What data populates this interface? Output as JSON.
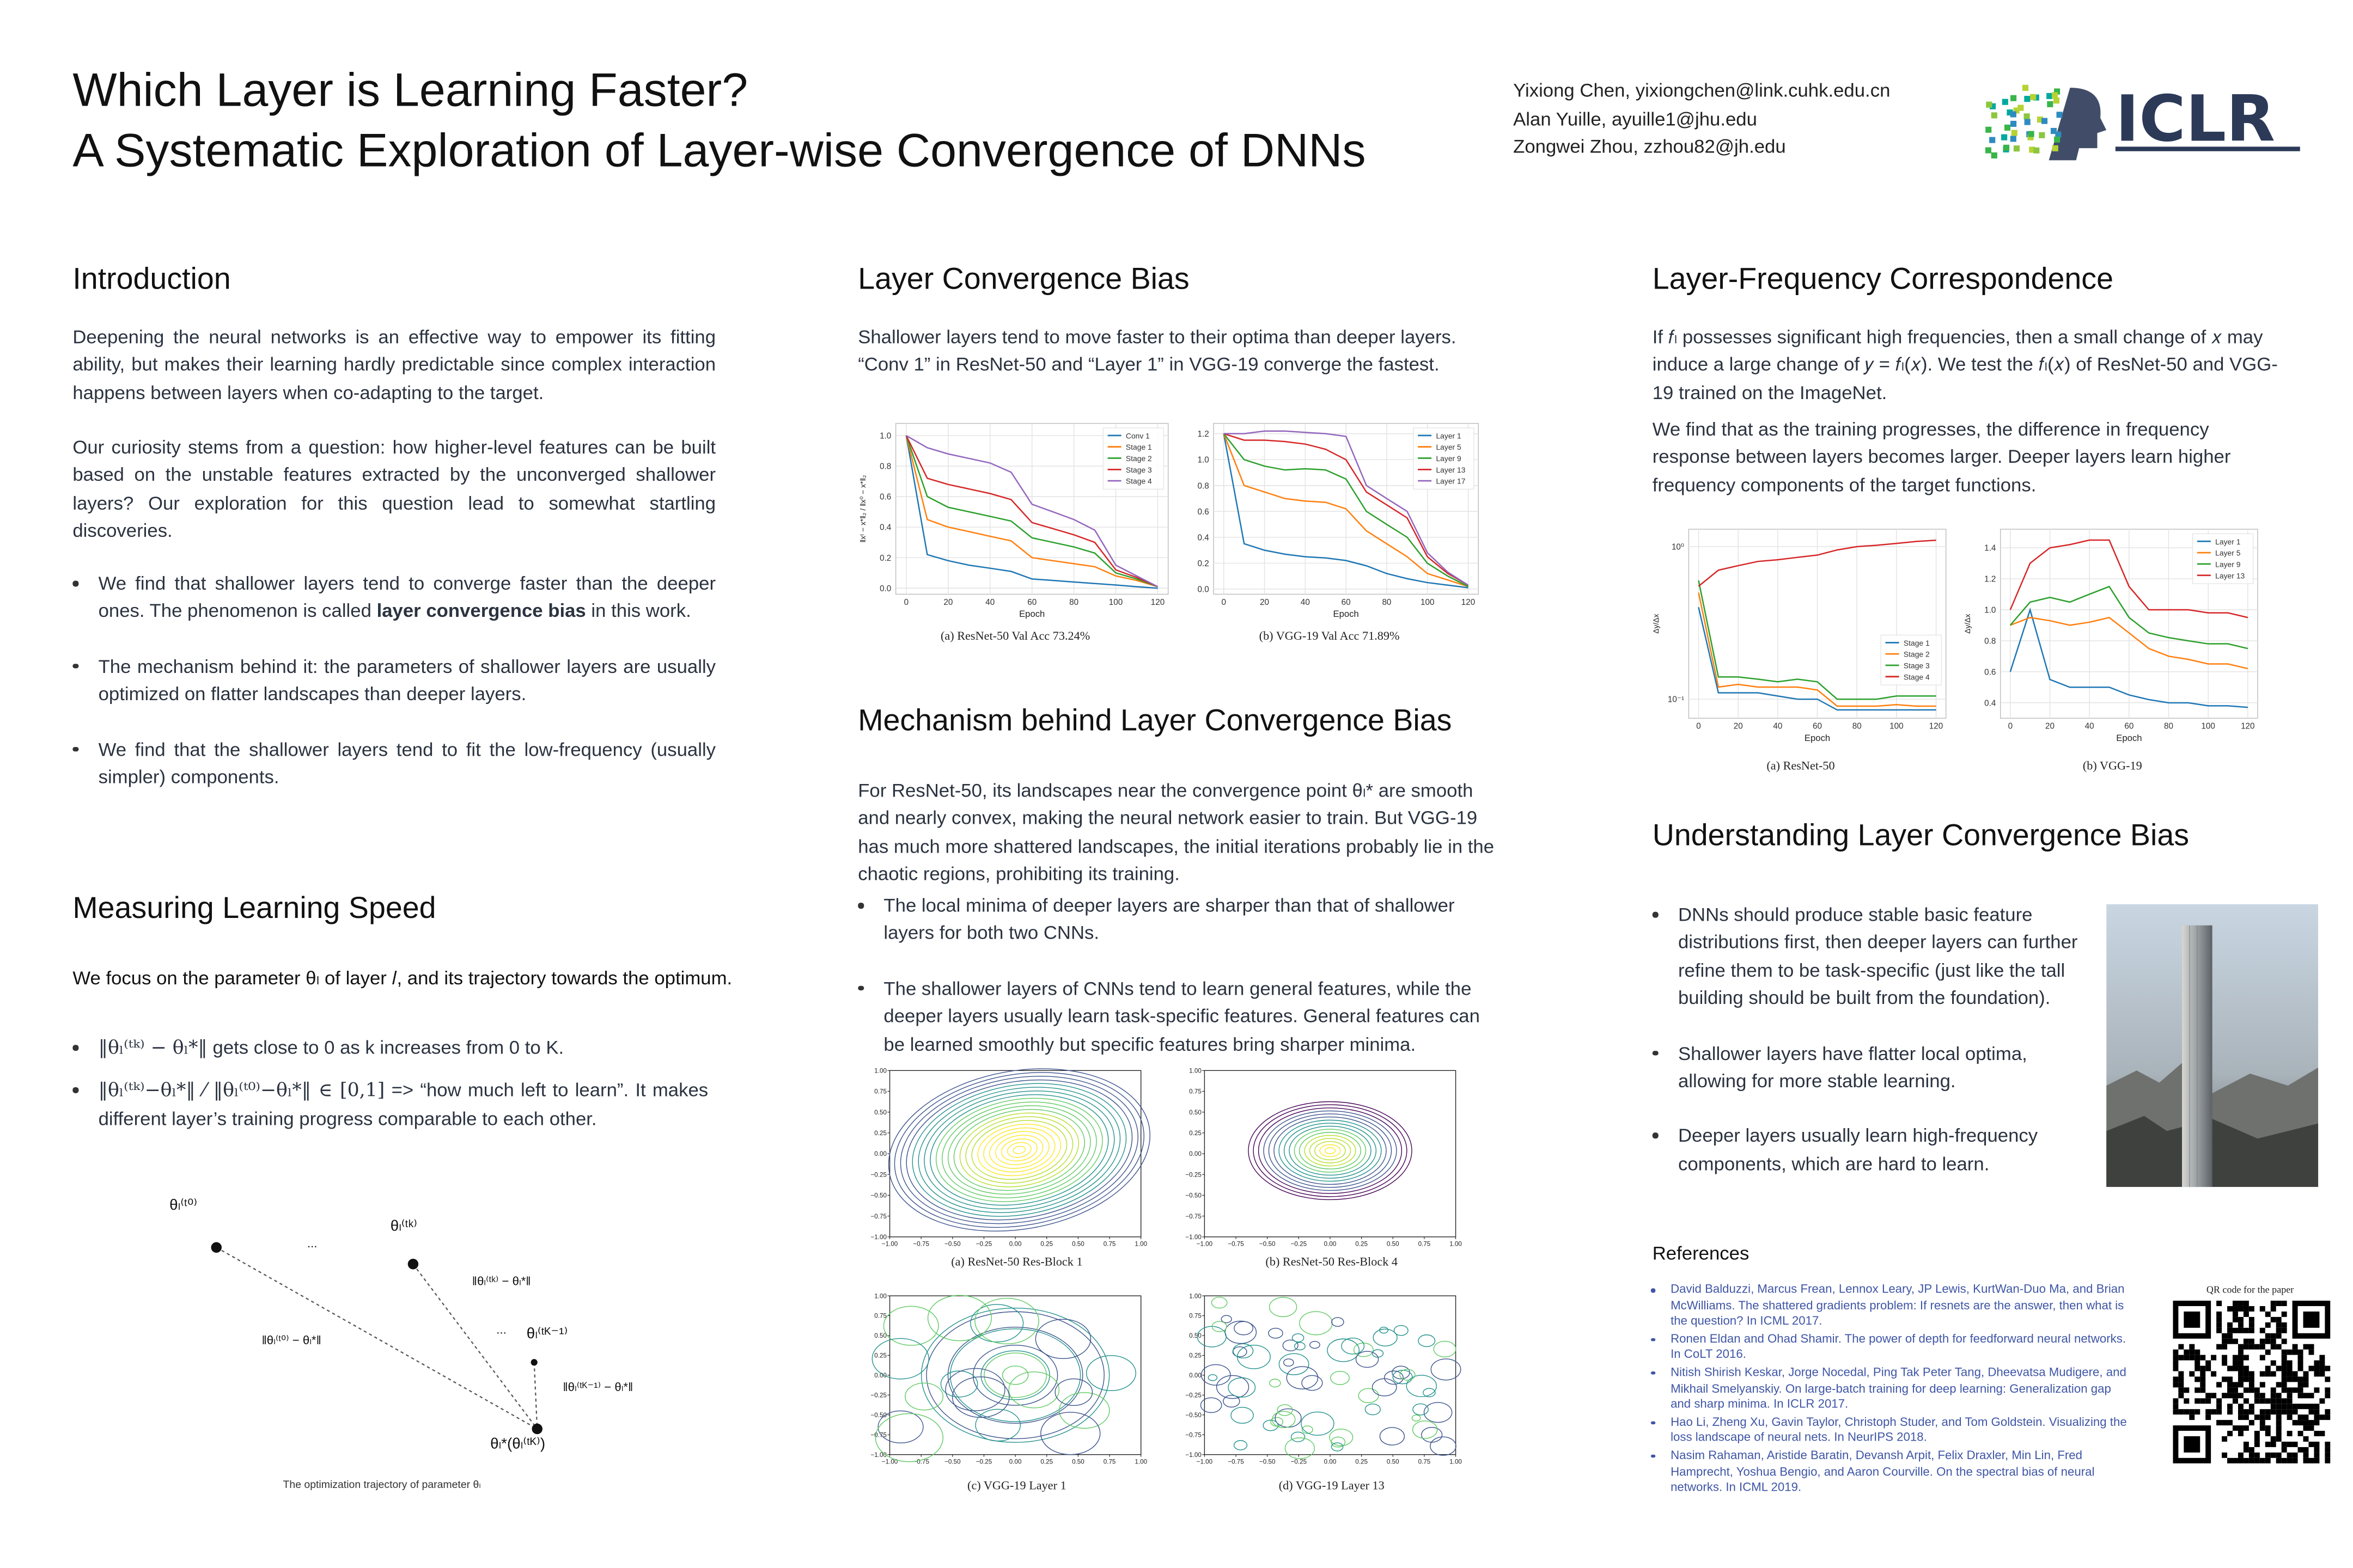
{
  "header": {
    "title_line1": "Which Layer is Learning Faster?",
    "title_line2": "A Systematic Exploration of Layer-wise Convergence of DNNs",
    "authors": [
      "Yixiong Chen, yixiongchen@link.cuhk.edu.cn",
      "Alan Yuille, ayuille1@jhu.edu",
      "Zongwei Zhou, zzhou82@jh.edu"
    ],
    "logo_text": "ICLR"
  },
  "introduction": {
    "heading": "Introduction",
    "paragraphs": [
      "Deepening the neural networks is an effective way to empower its fitting ability, but makes their learning hardly predictable since complex interaction happens between layers when co-adapting to the target.",
      "Our curiosity stems from a question: how higher-level features can be built based on the unstable features extracted by the unconverged shallower layers? Our exploration for this question lead to somewhat startling discoveries."
    ],
    "bullets": [
      {
        "before": "We find that shallower layers tend to converge faster than the deeper ones. The phenomenon is called",
        "bold": "layer convergence bias",
        "after": "in this work."
      },
      "The mechanism behind it: the parameters of shallower layers are usually optimized on flatter landscapes than deeper layers.",
      "We find that the shallower layers tend to fit the low-frequency (usually simpler) components."
    ]
  },
  "measuring": {
    "heading": "Measuring Learning Speed",
    "intro": "We focus on the parameter θₗ of layer 𝑙, and its trajectory towards the optimum.",
    "bullets": [
      {
        "formula": "‖θₗ⁽ᵗᵏ⁾ − θₗ*‖",
        "text": "gets close to 0 as k increases from 0 to K."
      },
      {
        "formula": "‖θₗ⁽ᵗᵏ⁾−θₗ*‖ ⁄ ‖θₗ⁽ᵗ⁰⁾−θₗ*‖ ∈ [0,1]",
        "text": "=>  “how much left to learn”. It makes different layer’s training progress comparable to each other."
      }
    ],
    "diagram": {
      "theta_t0": "θₗ⁽ᵗ⁰⁾",
      "theta_tk": "θₗ⁽ᵗᵏ⁾",
      "theta_tK1": "θₗ⁽ᵗᴷ⁻¹⁾",
      "theta_star": "θₗ*(θₗ⁽ᵗᴷ⁾)",
      "dist_t0": "‖θₗ⁽ᵗ⁰⁾ − θₗ*‖",
      "dist_tk": "‖θₗ⁽ᵗᵏ⁾ − θₗ*‖",
      "dist_tK1": "‖θₗ⁽ᵗᴷ⁻¹⁾ − θₗ*‖",
      "ellipsis": "...",
      "caption": "The optimization trajectory of parameter θₗ"
    }
  },
  "convergence": {
    "heading": "Layer Convergence Bias",
    "text": "Shallower layers tend to move faster to their optima than deeper layers. “Conv 1” in ResNet-50 and “Layer 1” in VGG-19 converge the fastest.",
    "figures": [
      {
        "type": "line",
        "caption": "(a) ResNet-50    Val Acc 73.24%",
        "xlabel": "Epoch",
        "ylabel": "‖xᵗ − x*‖₂ / ‖x⁰ − x*‖₂",
        "x": [
          0,
          10,
          20,
          30,
          40,
          50,
          60,
          70,
          80,
          90,
          100,
          110,
          120
        ],
        "xlim": [
          -5,
          125
        ],
        "xticks": [
          0,
          20,
          40,
          60,
          80,
          100,
          120
        ],
        "ylim": [
          -0.04,
          1.08
        ],
        "yticks": [
          {
            "value": 0,
            "label": "0.0"
          },
          0.2,
          0.4,
          0.6,
          0.8,
          {
            "value": 1,
            "label": "1.0"
          }
        ],
        "legend": "upper right",
        "grid": true,
        "series": [
          {
            "name": "Conv 1",
            "color": "#1f77b4",
            "values": [
              1.0,
              0.22,
              0.18,
              0.15,
              0.13,
              0.11,
              0.06,
              0.05,
              0.04,
              0.03,
              0.02,
              0.01,
              0.0
            ]
          },
          {
            "name": "Stage 1",
            "color": "#ff7f0e",
            "values": [
              1.0,
              0.45,
              0.4,
              0.37,
              0.34,
              0.31,
              0.2,
              0.18,
              0.16,
              0.14,
              0.08,
              0.05,
              0.01
            ]
          },
          {
            "name": "Stage 2",
            "color": "#2ca02c",
            "values": [
              1.0,
              0.6,
              0.53,
              0.5,
              0.47,
              0.44,
              0.33,
              0.3,
              0.27,
              0.23,
              0.1,
              0.06,
              0.01
            ]
          },
          {
            "name": "Stage 3",
            "color": "#d62728",
            "values": [
              1.0,
              0.72,
              0.68,
              0.65,
              0.62,
              0.58,
              0.43,
              0.39,
              0.35,
              0.3,
              0.12,
              0.07,
              0.01
            ]
          },
          {
            "name": "Stage 4",
            "color": "#9467bd",
            "values": [
              1.0,
              0.92,
              0.88,
              0.85,
              0.82,
              0.76,
              0.55,
              0.5,
              0.45,
              0.38,
              0.15,
              0.08,
              0.01
            ]
          }
        ]
      },
      {
        "type": "line",
        "caption": "(b) VGG-19    Val Acc 71.89%",
        "xlabel": "Epoch",
        "x": [
          0,
          10,
          20,
          30,
          40,
          50,
          60,
          70,
          80,
          90,
          100,
          110,
          120
        ],
        "xlim": [
          -5,
          125
        ],
        "xticks": [
          0,
          20,
          40,
          60,
          80,
          100,
          120
        ],
        "ylim": [
          -0.04,
          1.28
        ],
        "yticks": [
          {
            "value": 0,
            "label": "0.0"
          },
          0.2,
          0.4,
          0.6,
          0.8,
          {
            "value": 1,
            "label": "1.0"
          },
          1.2
        ],
        "legend": "upper right",
        "grid": true,
        "series": [
          {
            "name": "Layer 1",
            "color": "#1f77b4",
            "values": [
              1.2,
              0.35,
              0.3,
              0.27,
              0.25,
              0.24,
              0.22,
              0.18,
              0.12,
              0.08,
              0.05,
              0.03,
              0.01
            ]
          },
          {
            "name": "Layer 5",
            "color": "#ff7f0e",
            "values": [
              1.2,
              0.8,
              0.75,
              0.7,
              0.68,
              0.67,
              0.62,
              0.45,
              0.35,
              0.25,
              0.12,
              0.07,
              0.02
            ]
          },
          {
            "name": "Layer 9",
            "color": "#2ca02c",
            "values": [
              1.2,
              1.0,
              0.95,
              0.92,
              0.93,
              0.92,
              0.85,
              0.6,
              0.5,
              0.4,
              0.2,
              0.1,
              0.02
            ]
          },
          {
            "name": "Layer 13",
            "color": "#d62728",
            "values": [
              1.2,
              1.15,
              1.15,
              1.14,
              1.12,
              1.08,
              1.0,
              0.75,
              0.65,
              0.55,
              0.25,
              0.12,
              0.03
            ]
          },
          {
            "name": "Layer 17",
            "color": "#9467bd",
            "values": [
              1.2,
              1.2,
              1.22,
              1.22,
              1.21,
              1.2,
              1.18,
              0.8,
              0.7,
              0.6,
              0.28,
              0.13,
              0.03
            ]
          }
        ]
      }
    ]
  },
  "mechanism": {
    "heading": "Mechanism behind Layer Convergence Bias",
    "text": "For ResNet-50, its landscapes near the convergence point θₗ* are smooth and nearly convex, making the neural network easier to train. But VGG-19 has much more shattered landscapes, the initial iterations probably lie in the chaotic regions, prohibiting its training.",
    "bullets": [
      "The local minima of deeper layers are sharper than that of shallower layers for both two CNNs.",
      "The shallower layers of CNNs tend to learn general features, while the deeper layers usually learn task-specific features. General features can be learned smoothly but specific features bring sharper minima."
    ],
    "contour_ticks": [
      {
        "value": -1,
        "label": "−1.00"
      },
      {
        "value": -0.75,
        "label": "−0.75"
      },
      {
        "value": -0.5,
        "label": "−0.50"
      },
      {
        "value": -0.25,
        "label": "−0.25"
      },
      {
        "value": 0,
        "label": "0.00"
      },
      0.25,
      {
        "value": 0.5,
        "label": "0.50"
      },
      0.75,
      {
        "value": 1,
        "label": "1.00"
      }
    ],
    "figures": [
      {
        "caption": "(a) ResNet-50 Res-Block 1"
      },
      {
        "caption": "(b) ResNet-50 Res-Block 4"
      },
      {
        "caption": "(c) VGG-19 Layer 1"
      },
      {
        "caption": "(d) VGG-19 Layer 13"
      }
    ]
  },
  "frequency": {
    "heading": "Layer-Frequency Correspondence",
    "paragraphs": [
      "If 𝑓ₗ possesses significant high frequencies, then a small change of 𝑥 may induce a large change of 𝑦 = 𝑓ₗ(𝑥). We test the 𝑓ₗ(𝑥) of ResNet-50 and VGG-19 trained on the ImageNet.",
      "We find that as the training progresses, the difference in frequency response between layers becomes larger. Deeper layers learn higher frequency components of the target functions."
    ],
    "figures": [
      {
        "type": "line",
        "caption": "(a) ResNet-50",
        "xlabel": "Epoch",
        "ylabel": "Δy/Δx",
        "log": true,
        "x": [
          0,
          10,
          20,
          30,
          40,
          50,
          60,
          70,
          80,
          90,
          100,
          110,
          120
        ],
        "xlim": [
          -5,
          125
        ],
        "xticks": [
          0,
          20,
          40,
          60,
          80,
          100,
          120
        ],
        "ylim": [
          0.075,
          1.3
        ],
        "yticks": [
          {
            "value": 0.1,
            "label": "10⁻¹"
          },
          {
            "value": 1,
            "label": "10⁰"
          }
        ],
        "legend": "lower right",
        "grid": true,
        "series": [
          {
            "name": "Stage 1",
            "color": "#1f77b4",
            "values": [
              0.4,
              0.11,
              0.11,
              0.11,
              0.105,
              0.1,
              0.1,
              0.085,
              0.085,
              0.085,
              0.085,
              0.085,
              0.085
            ]
          },
          {
            "name": "Stage 2",
            "color": "#ff7f0e",
            "values": [
              0.5,
              0.12,
              0.125,
              0.12,
              0.12,
              0.12,
              0.115,
              0.09,
              0.09,
              0.09,
              0.092,
              0.09,
              0.09
            ]
          },
          {
            "name": "Stage 3",
            "color": "#2ca02c",
            "values": [
              0.6,
              0.14,
              0.14,
              0.135,
              0.13,
              0.135,
              0.13,
              0.1,
              0.1,
              0.1,
              0.105,
              0.105,
              0.105
            ]
          },
          {
            "name": "Stage 4",
            "color": "#d62728",
            "values": [
              0.55,
              0.7,
              0.75,
              0.8,
              0.82,
              0.85,
              0.88,
              0.95,
              1.0,
              1.02,
              1.05,
              1.08,
              1.1
            ]
          }
        ]
      },
      {
        "type": "line",
        "caption": "(b) VGG-19",
        "xlabel": "Epoch",
        "ylabel": "Δy/Δx",
        "x": [
          0,
          10,
          20,
          30,
          40,
          50,
          60,
          70,
          80,
          90,
          100,
          110,
          120
        ],
        "xlim": [
          -5,
          125
        ],
        "xticks": [
          0,
          20,
          40,
          60,
          80,
          100,
          120
        ],
        "ylim": [
          0.3,
          1.52
        ],
        "yticks": [
          0.4,
          0.6,
          0.8,
          {
            "value": 1,
            "label": "1.0"
          },
          1.2,
          1.4
        ],
        "legend": "upper right",
        "grid": true,
        "series": [
          {
            "name": "Layer 1",
            "color": "#1f77b4",
            "values": [
              0.6,
              1.0,
              0.55,
              0.5,
              0.5,
              0.5,
              0.45,
              0.42,
              0.4,
              0.4,
              0.38,
              0.38,
              0.37
            ]
          },
          {
            "name": "Layer 5",
            "color": "#ff7f0e",
            "values": [
              0.9,
              0.95,
              0.93,
              0.9,
              0.92,
              0.95,
              0.85,
              0.75,
              0.7,
              0.68,
              0.65,
              0.65,
              0.62
            ]
          },
          {
            "name": "Layer 9",
            "color": "#2ca02c",
            "values": [
              0.9,
              1.05,
              1.08,
              1.05,
              1.1,
              1.15,
              0.95,
              0.85,
              0.82,
              0.8,
              0.78,
              0.78,
              0.75
            ]
          },
          {
            "name": "Layer 13",
            "color": "#d62728",
            "values": [
              1.0,
              1.3,
              1.4,
              1.42,
              1.45,
              1.45,
              1.15,
              1.0,
              1.0,
              1.0,
              0.98,
              0.98,
              0.95
            ]
          }
        ]
      }
    ]
  },
  "understanding": {
    "heading": "Understanding Layer Convergence Bias",
    "bullets": [
      "DNNs should produce stable basic feature distributions first, then deeper layers can further refine them to be task-specific (just like the tall building should be built from the foundation).",
      "Shallower layers have flatter local optima, allowing for more stable learning.",
      "Deeper layers usually learn high-frequency components, which are hard to learn."
    ]
  },
  "references": {
    "heading": "References",
    "items": [
      "David Balduzzi, Marcus Frean, Lennox Leary, JP Lewis, KurtWan-Duo Ma, and Brian McWilliams. The shattered gradients problem: If resnets are the answer, then what is the question? In ICML 2017.",
      "Ronen Eldan and Ohad Shamir. The power of depth for feedforward neural networks. In CoLT 2016.",
      "Nitish Shirish Keskar, Jorge Nocedal, Ping Tak Peter Tang, Dheevatsa Mudigere, and Mikhail Smelyanskiy. On large-batch training for deep learning: Generalization gap and sharp minima. In ICLR 2017.",
      "Hao Li, Zheng Xu, Gavin Taylor, Christoph Studer, and Tom Goldstein. Visualizing the loss landscape of neural nets. In NeurIPS 2018.",
      "Nasim Rahaman, Aristide Baratin, Devansh Arpit, Felix Draxler, Min Lin, Fred Hamprecht, Yoshua Bengio, and Aaron Courville. On the spectral bias of neural networks. In ICML 2019."
    ],
    "qr_label": "QR code for the paper"
  }
}
